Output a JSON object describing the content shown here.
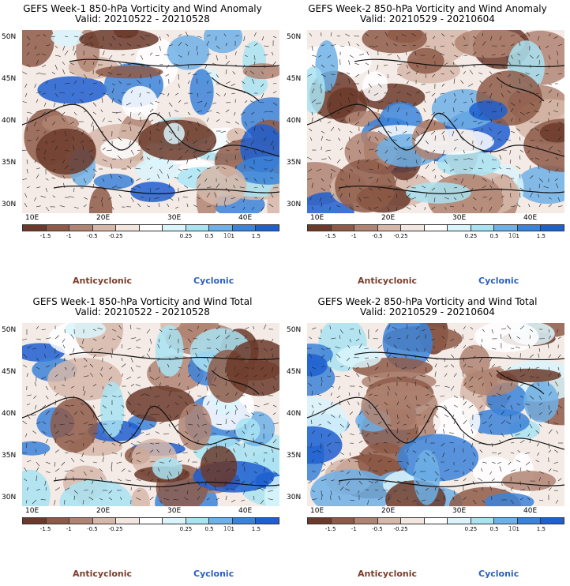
{
  "panels": [
    {
      "title": "GEFS Week-1 850-hPa Vorticity and Wind Anomaly",
      "valid": "Valid: 20210522 - 20210528",
      "seed": 11
    },
    {
      "title": "GEFS Week-2 850-hPa Vorticity and Wind Anomaly",
      "valid": "Valid: 20210529 - 20210604",
      "seed": 23
    },
    {
      "title": "GEFS Week-1 850-hPa Vorticity and Wind Total",
      "valid": "Valid: 20210522 - 20210528",
      "seed": 37
    },
    {
      "title": "GEFS Week-2 850-hPa Vorticity and Wind Total",
      "valid": "Valid: 20210529 - 20210604",
      "seed": 53
    }
  ],
  "lat_labels": [
    "50N",
    "45N",
    "40N",
    "35N",
    "30N"
  ],
  "lon_labels": [
    "10E",
    "20E",
    "30E",
    "40E"
  ],
  "colorbar": {
    "labels": [
      "-1.5",
      "-1",
      "-0.5",
      "-0.25",
      "0.25",
      "0.5",
      "1",
      "1.5"
    ],
    "unit": "10",
    "colors": [
      "#6b3a2a",
      "#8e5a48",
      "#b08472",
      "#d6b7a8",
      "#f2e6df",
      "#ffffff",
      "#d9f4fb",
      "#a9e3f2",
      "#6fb0e6",
      "#3b83d8",
      "#1f5fd0"
    ]
  },
  "legend": {
    "anticyclonic": "Anticyclonic",
    "cyclonic": "Cyclonic"
  }
}
